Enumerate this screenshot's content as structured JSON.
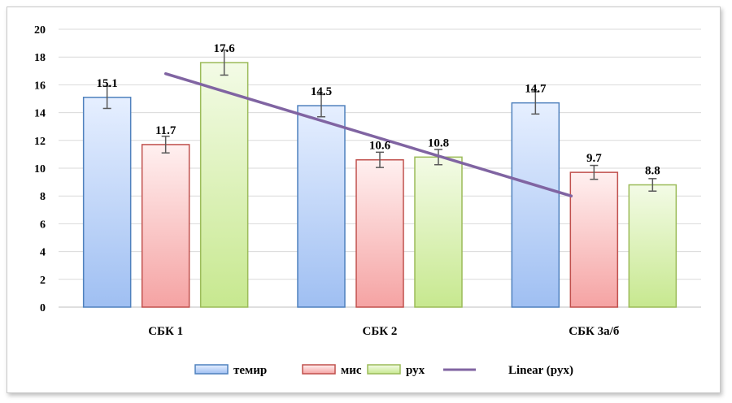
{
  "chart_data": {
    "type": "bar",
    "categories": [
      "СБК 1",
      "СБК 2",
      "СБК 3а/б"
    ],
    "series": [
      {
        "name": "темир",
        "values": [
          15.1,
          14.5,
          14.7
        ],
        "errors": [
          0.8,
          0.8,
          0.8
        ],
        "fill_top": "#e6efff",
        "fill_bottom": "#9fbff2",
        "stroke": "#4f81bd"
      },
      {
        "name": "мис",
        "values": [
          11.7,
          10.6,
          9.7
        ],
        "errors": [
          0.6,
          0.55,
          0.5
        ],
        "fill_top": "#fff0f0",
        "fill_bottom": "#f5a3a3",
        "stroke": "#c0504d"
      },
      {
        "name": "рух",
        "values": [
          17.6,
          10.8,
          8.8
        ],
        "errors": [
          0.9,
          0.55,
          0.45
        ],
        "fill_top": "#f3fbe6",
        "fill_bottom": "#c7e88f",
        "stroke": "#9bbb59"
      }
    ],
    "trendline": {
      "name": "Linear (рух)",
      "of_series": "рух",
      "color": "#8064a2",
      "start": 16.8,
      "end": 8.0
    },
    "ylim": [
      0,
      20
    ],
    "yticks": [
      0,
      2,
      4,
      6,
      8,
      10,
      12,
      14,
      16,
      18,
      20
    ],
    "grid": true,
    "legend_position": "bottom",
    "title": "",
    "xlabel": "",
    "ylabel": ""
  }
}
